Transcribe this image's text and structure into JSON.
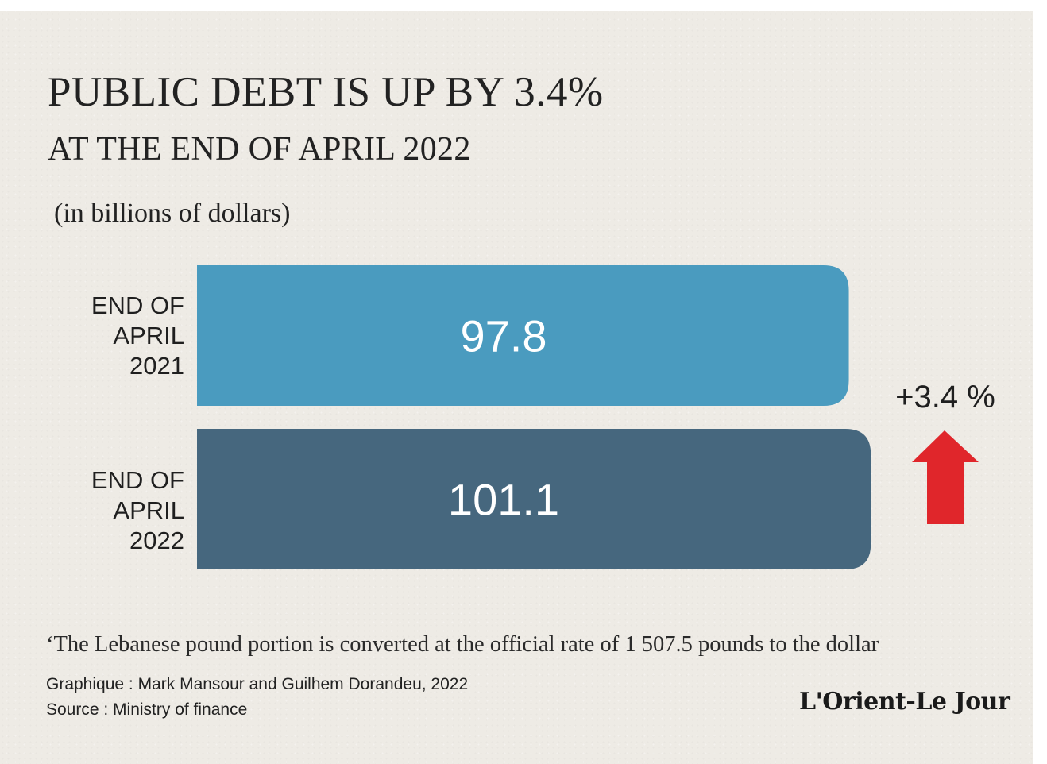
{
  "title": "PUBLIC DEBT IS UP BY 3.4%",
  "subtitle": "AT THE END OF APRIL 2022",
  "unit_note": "(in billions of dollars)",
  "chart_data": {
    "type": "bar",
    "orientation": "horizontal",
    "categories": [
      [
        "END OF",
        "APRIL",
        "2021"
      ],
      [
        "END OF",
        "APRIL",
        "2022"
      ]
    ],
    "values": [
      97.8,
      101.1
    ],
    "value_labels": [
      "97.8",
      "101.1"
    ],
    "bar_colors": [
      "#4a9bbf",
      "#46677e"
    ],
    "value_label_color": "#ffffff",
    "change_label": "+3.4 %",
    "change_arrow": "up-arrow",
    "change_arrow_color": "#e0262b",
    "grid": false,
    "legend": "none"
  },
  "footnote": "‘The Lebanese pound portion is converted at the official rate of 1 507.5 pounds to the dollar",
  "credits": {
    "graphic": "Graphique : Mark Mansour and Guilhem Dorandeu, 2022",
    "source": "Source : Ministry of finance"
  },
  "logo": {
    "text": "L'Orient-Le Jour"
  },
  "colors": {
    "background": "#eeebe5",
    "text": "#1f1f1f"
  }
}
